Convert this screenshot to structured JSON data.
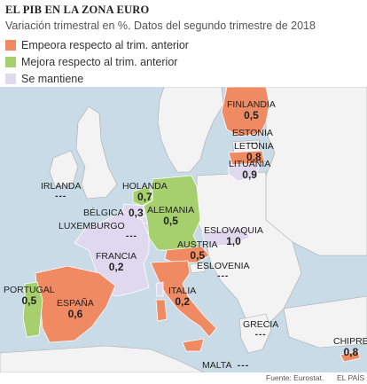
{
  "title": "EL PIB EN LA ZONA EURO",
  "subtitle": "Variación trimestral en %. Datos del segundo trimestre de 2018",
  "legend": [
    {
      "label": "Empeora respecto al trim. anterior",
      "color": "#ef8a62"
    },
    {
      "label": "Mejora respecto al trim. anterior",
      "color": "#a6cf6e"
    },
    {
      "label": "Se mantiene",
      "color": "#e0d8ee"
    }
  ],
  "countries": {
    "finlandia": {
      "name": "FINLANDIA",
      "value": "0,5"
    },
    "estonia": {
      "name": "ESTONIA",
      "value": "---"
    },
    "letonia": {
      "name": "LETONIA",
      "value": "0,8"
    },
    "lituania": {
      "name": "LITUANIA",
      "value": "0,9"
    },
    "irlanda": {
      "name": "IRLANDA",
      "value": "---"
    },
    "holanda": {
      "name": "HOLANDA",
      "value": "0,7"
    },
    "belgica": {
      "name": "BÉLGICA",
      "value": "0,3"
    },
    "alemania": {
      "name": "ALEMANIA",
      "value": "0,5"
    },
    "luxemburgo": {
      "name": "LUXEMBURGO",
      "value": "---"
    },
    "eslovaquia": {
      "name": "ESLOVAQUIA",
      "value": "1,0"
    },
    "francia": {
      "name": "FRANCIA",
      "value": "0,2"
    },
    "austria": {
      "name": "AUSTRIA",
      "value": "0,5"
    },
    "eslovenia": {
      "name": "ESLOVENIA",
      "value": "---"
    },
    "portugal": {
      "name": "PORTUGAL",
      "value": "0,5"
    },
    "espana": {
      "name": "ESPAÑA",
      "value": "0,6"
    },
    "italia": {
      "name": "ITALIA",
      "value": "0,2"
    },
    "grecia": {
      "name": "GRECIA",
      "value": "---"
    },
    "chipre": {
      "name": "CHIPRE",
      "value": "0,8"
    },
    "malta": {
      "name": "MALTA",
      "value": "---"
    }
  },
  "footer": {
    "source": "Fuente: Eurostat.",
    "publisher": "EL PAÍS"
  }
}
